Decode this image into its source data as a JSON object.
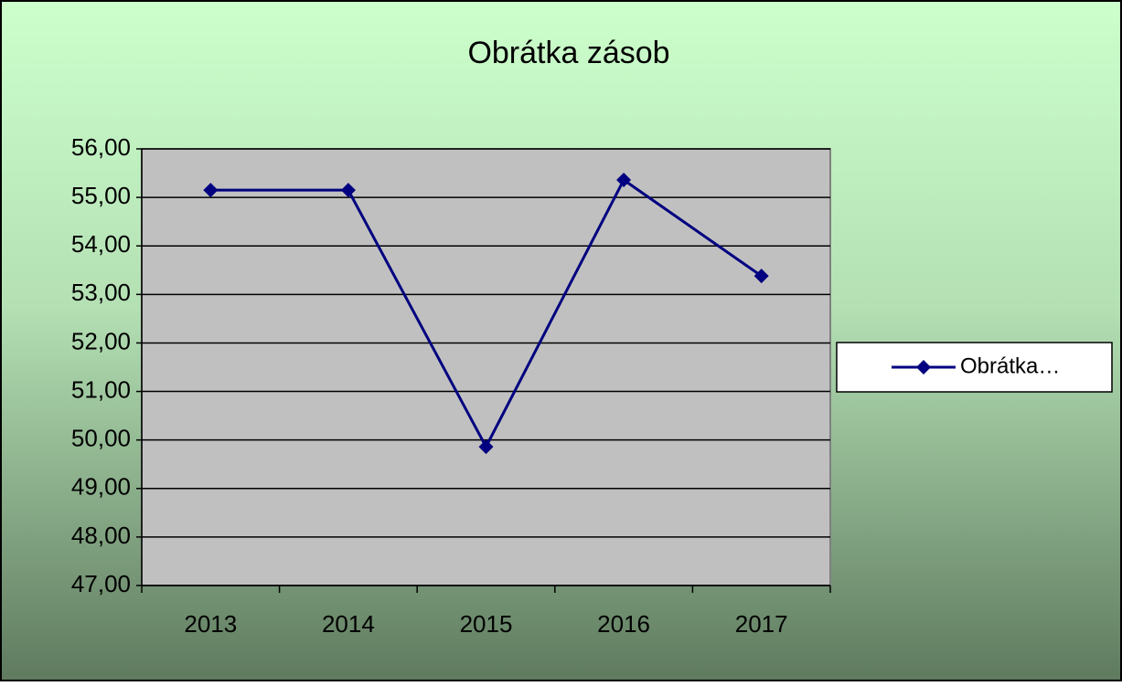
{
  "chart_data": {
    "type": "line",
    "title": "Obrátka zásob",
    "categories": [
      "2013",
      "2014",
      "2015",
      "2016",
      "2017"
    ],
    "series": [
      {
        "name": "Obrátka…",
        "color": "#000080",
        "values": [
          55.15,
          55.15,
          49.86,
          55.36,
          53.38
        ]
      }
    ],
    "ylim": [
      47,
      56
    ],
    "yticks": [
      {
        "value": 47,
        "label": "47,00"
      },
      {
        "value": 48,
        "label": "48,00"
      },
      {
        "value": 49,
        "label": "49,00"
      },
      {
        "value": 50,
        "label": "50,00"
      },
      {
        "value": 51,
        "label": "51,00"
      },
      {
        "value": 52,
        "label": "52,00"
      },
      {
        "value": 53,
        "label": "53,00"
      },
      {
        "value": 54,
        "label": "54,00"
      },
      {
        "value": 55,
        "label": "55,00"
      },
      {
        "value": 56,
        "label": "56,00"
      }
    ],
    "grid": true,
    "legend": "right"
  }
}
